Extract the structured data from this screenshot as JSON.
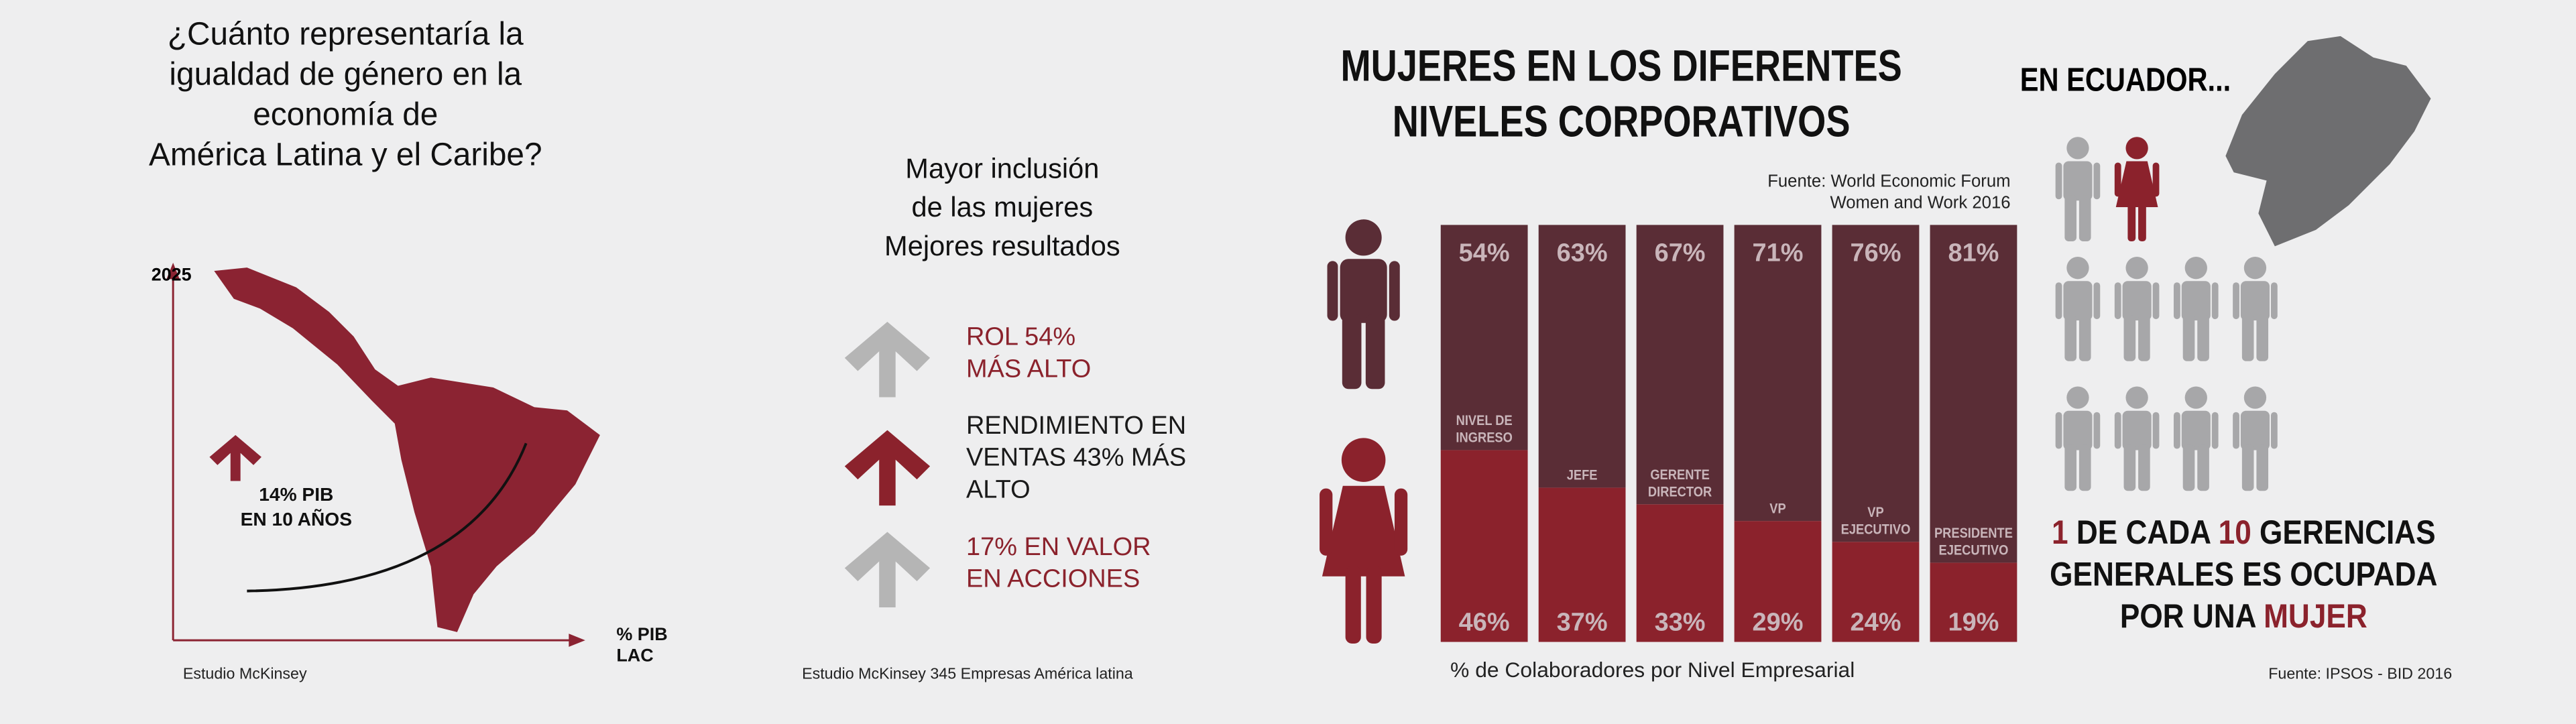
{
  "left": {
    "title": [
      "¿Cuánto representaría la",
      "igualdad de género en la",
      "economía de",
      "América Latina y el Caribe?"
    ],
    "y_label": "2025",
    "x_label": [
      "% PIB",
      "LAC"
    ],
    "callout": [
      "14% PIB",
      "EN 10 AÑOS"
    ],
    "source": "Estudio McKinsey"
  },
  "middle": {
    "title": [
      "Mayor inclusión",
      "de las mujeres",
      "Mejores resultados"
    ],
    "items": [
      {
        "lines": [
          "ROL 54%",
          "MÁS ALTO"
        ],
        "color": "#8b222c",
        "arrow_color": "#b5b5b5"
      },
      {
        "lines": [
          "RENDIMIENTO EN",
          "VENTAS 43% MÁS",
          "ALTO"
        ],
        "color": "#1a1a1a",
        "arrow_color": "#8b222c"
      },
      {
        "lines": [
          "17% EN VALOR",
          "EN ACCIONES"
        ],
        "color": "#8b222c",
        "arrow_color": "#b5b5b5"
      }
    ],
    "source": "Estudio McKinsey 345 Empresas América latina"
  },
  "chart_data": {
    "type": "stacked_bar",
    "title": [
      "MUJERES EN LOS DIFERENTES",
      "NIVELES CORPORATIVOS"
    ],
    "source": [
      "Fuente: World Economic Forum",
      "Women and Work 2016"
    ],
    "categories": [
      [
        "NIVEL DE",
        "INGRESO"
      ],
      [
        "JEFE"
      ],
      [
        "GERENTE",
        "DIRECTOR"
      ],
      [
        "VP"
      ],
      [
        "VP",
        "EJECUTIVO"
      ],
      [
        "PRESIDENTE",
        "EJECUTIVO"
      ]
    ],
    "series": [
      {
        "color": "#8b222c",
        "values": [
          46,
          37,
          33,
          29,
          24,
          19
        ],
        "value_labels": [
          "46%",
          "37%",
          "33%",
          "29%",
          "24%",
          "19%"
        ]
      },
      {
        "color": "#5a2d36",
        "values": [
          54,
          63,
          67,
          71,
          76,
          81
        ],
        "value_labels": [
          "54%",
          "63%",
          "67%",
          "71%",
          "76%",
          "81%"
        ]
      }
    ],
    "ylim": [
      0,
      100
    ],
    "xlabel": "% de Colaboradores por Nivel Empresarial"
  },
  "right": {
    "title": "EN ECUADOR...",
    "headline": [
      [
        {
          "text": "1",
          "color": "#8b222c"
        },
        {
          "text": " DE CADA "
        },
        {
          "text": "10",
          "color": "#8b222c"
        },
        {
          "text": " GERENCIAS"
        }
      ],
      [
        {
          "text": "GENERALES ES OCUPADA"
        }
      ],
      [
        {
          "text": "POR UNA "
        },
        {
          "text": "MUJER",
          "color": "#8b222c"
        }
      ]
    ],
    "source": "Fuente: IPSOS - BID 2016"
  }
}
